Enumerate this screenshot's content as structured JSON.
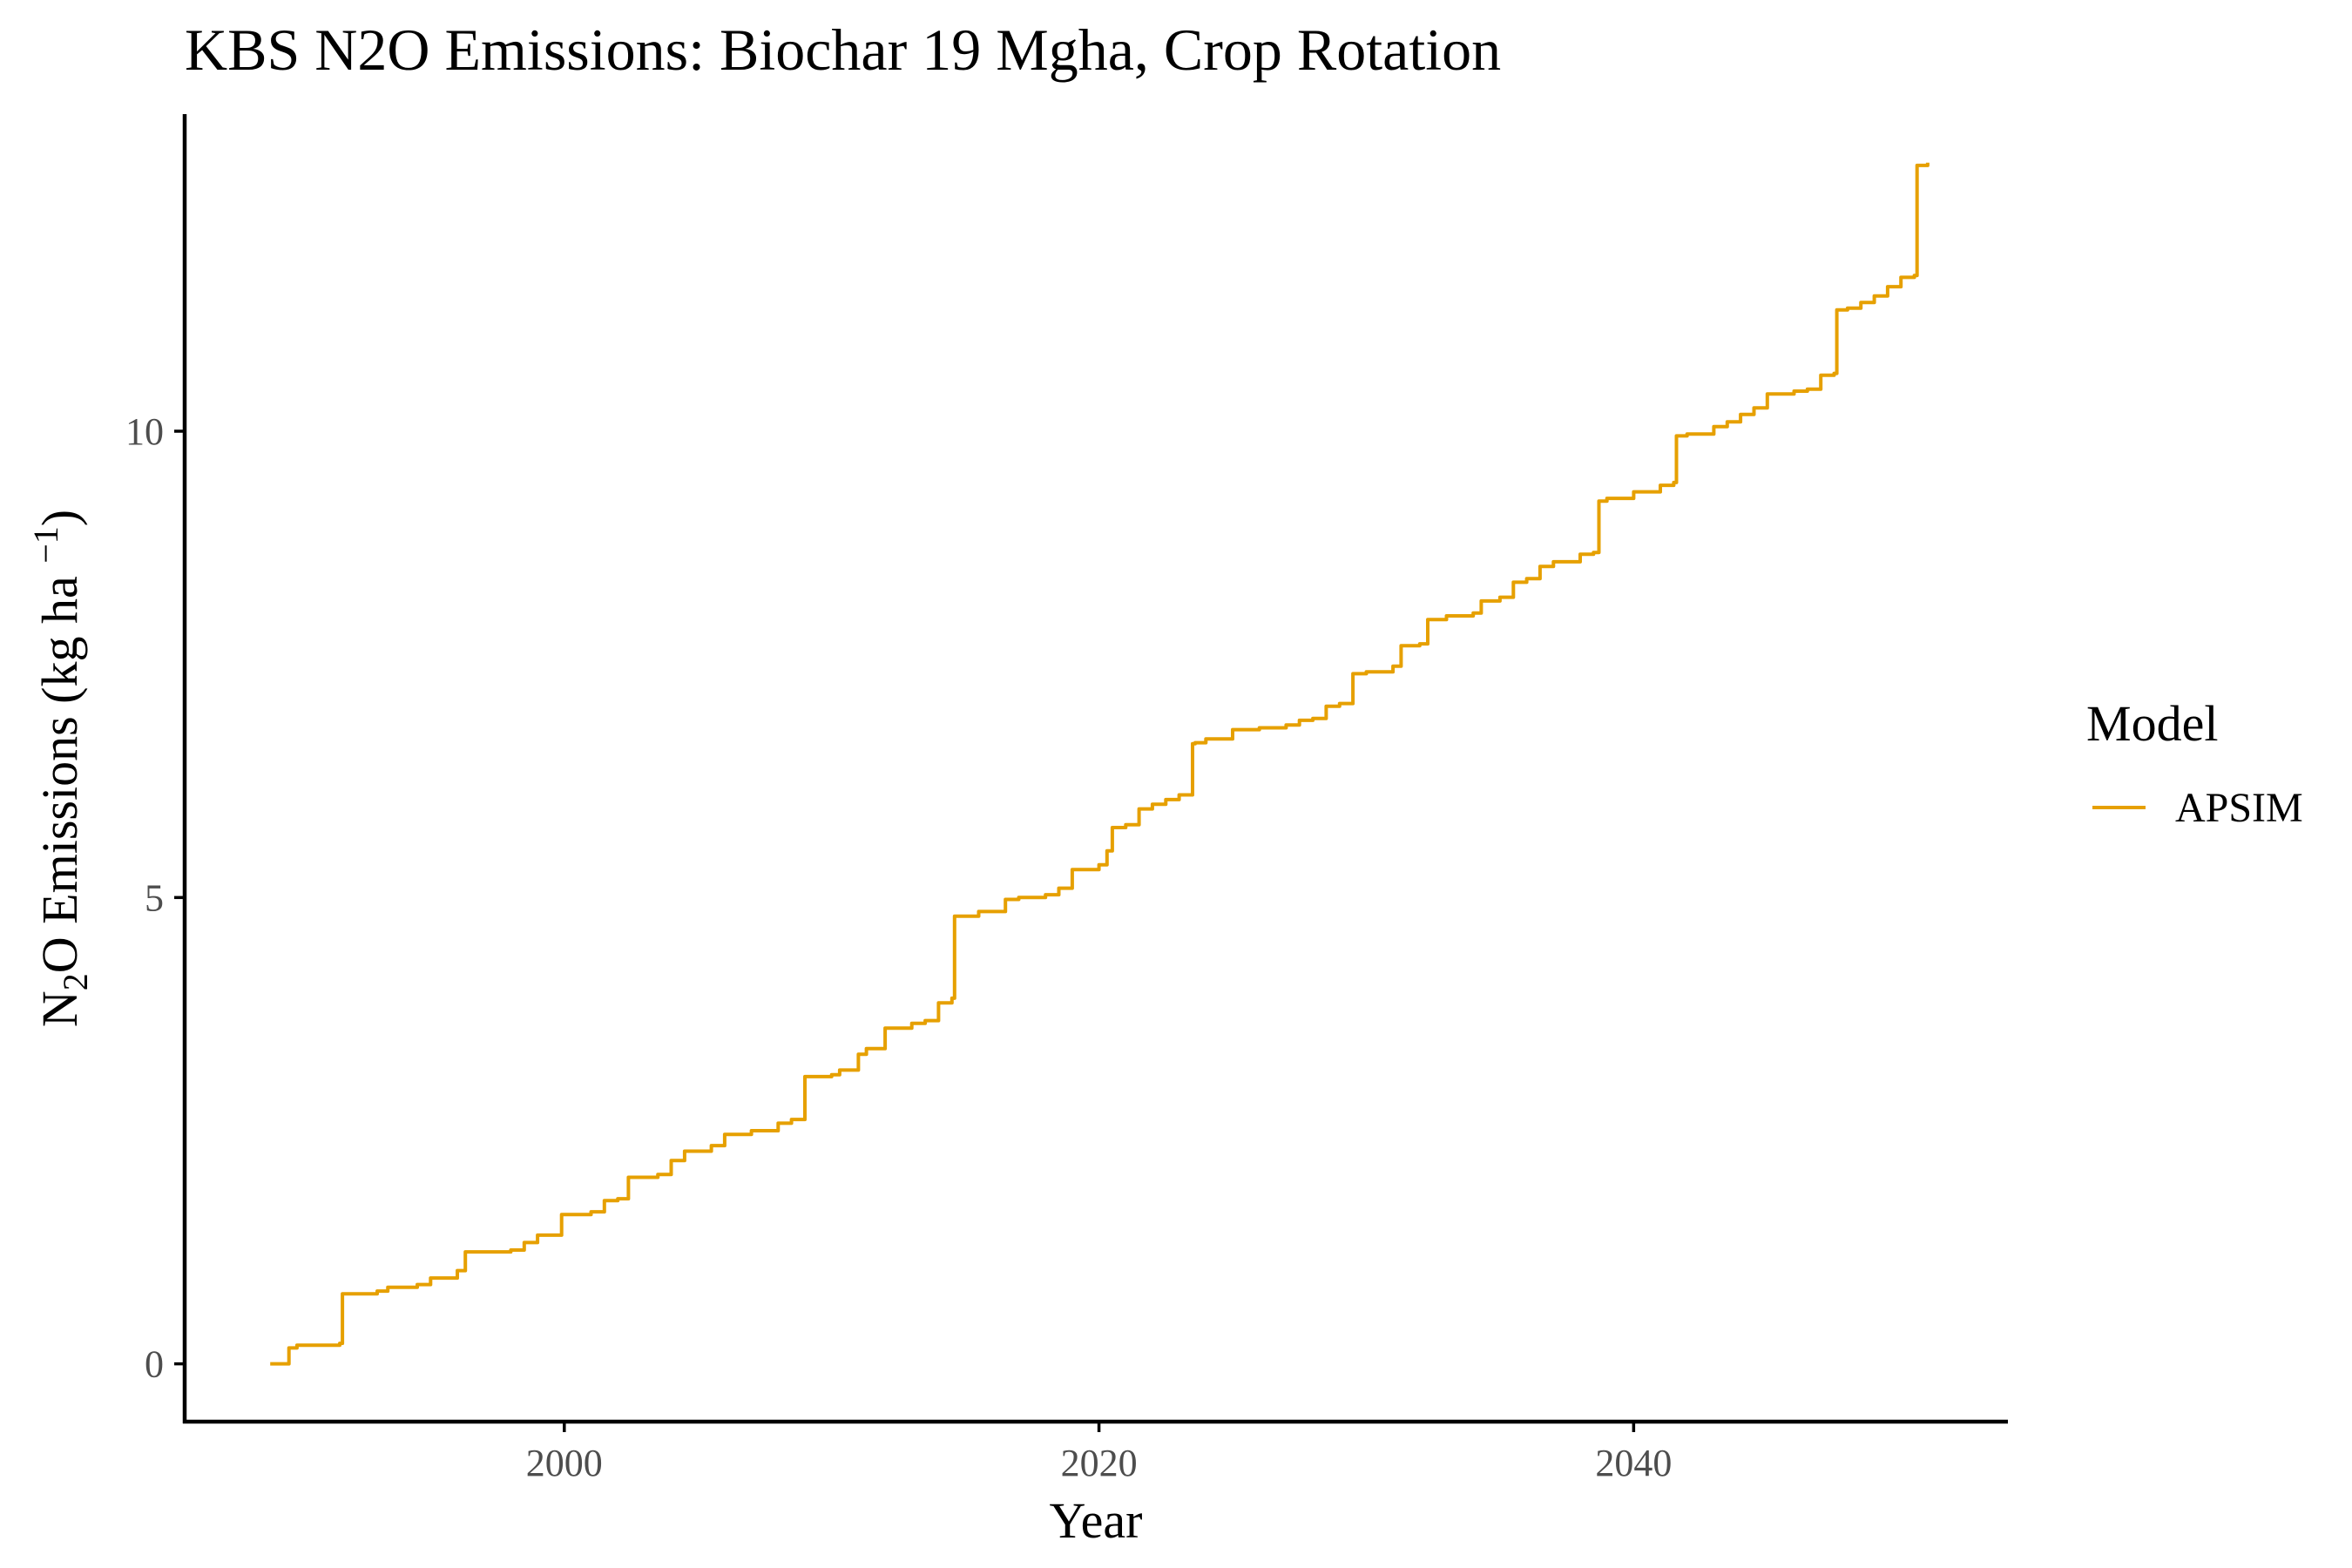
{
  "chart_data": {
    "type": "line",
    "title": "KBS N2O Emissions:  Biochar 19 Mgha, Crop Rotation",
    "xlabel": "Year",
    "ylabel": "N2O Emissions (kg ha -1)",
    "xlim": [
      1985.8,
      2054.0
    ],
    "ylim": [
      -0.62,
      13.4
    ],
    "xticks": [
      2000,
      2020,
      2040
    ],
    "yticks": [
      0,
      5,
      10
    ],
    "grid": false,
    "legend": {
      "title": "Model",
      "position": "right"
    },
    "series": [
      {
        "name": "APSIM",
        "color": "#E6A000",
        "x": [
          1989.0,
          1989.6,
          1989.7,
          1990.0,
          1991.0,
          1991.6,
          1991.7,
          1993.0,
          1993.4,
          1994.5,
          1995.0,
          1996.0,
          1996.3,
          1997.0,
          1998.0,
          1998.5,
          1999.0,
          1999.9,
          2000.2,
          2001.0,
          2001.5,
          2002.0,
          2002.4,
          2003.5,
          2004.0,
          2004.5,
          2005.5,
          2006.0,
          2007.0,
          2008.0,
          2008.5,
          2009.0,
          2010.0,
          2010.3,
          2011.0,
          2011.3,
          2012.0,
          2013.0,
          2013.5,
          2014.0,
          2014.5,
          2014.6,
          2015.0,
          2015.5,
          2016.5,
          2017.0,
          2018.0,
          2018.5,
          2019.0,
          2020.0,
          2020.3,
          2020.5,
          2021.0,
          2021.5,
          2022.0,
          2022.5,
          2023.0,
          2023.5,
          2023.6,
          2024.0,
          2025.0,
          2026.0,
          2027.0,
          2027.5,
          2028.0,
          2028.5,
          2029.0,
          2029.5,
          2030.0,
          2031.0,
          2031.3,
          2032.0,
          2032.3,
          2033.0,
          2034.0,
          2034.3,
          2035.0,
          2035.5,
          2036.0,
          2036.5,
          2037.0,
          2038.0,
          2038.5,
          2038.7,
          2039.0,
          2040.0,
          2041.0,
          2041.5,
          2041.6,
          2042.0,
          2043.0,
          2043.5,
          2044.0,
          2044.5,
          2045.0,
          2046.0,
          2046.5,
          2047.0,
          2047.5,
          2047.6,
          2048.0,
          2048.5,
          2049.0,
          2049.5,
          2050.0,
          2050.5,
          2050.6,
          2051.0
        ],
        "y": [
          0.0,
          0.0,
          0.17,
          0.2,
          0.2,
          0.22,
          0.75,
          0.78,
          0.82,
          0.85,
          0.92,
          1.0,
          1.2,
          1.2,
          1.22,
          1.3,
          1.38,
          1.6,
          1.6,
          1.63,
          1.75,
          1.77,
          2.0,
          2.03,
          2.18,
          2.28,
          2.34,
          2.46,
          2.5,
          2.58,
          2.62,
          3.08,
          3.1,
          3.15,
          3.32,
          3.38,
          3.6,
          3.65,
          3.68,
          3.87,
          3.92,
          4.8,
          4.8,
          4.85,
          4.98,
          5.0,
          5.03,
          5.1,
          5.3,
          5.35,
          5.5,
          5.75,
          5.78,
          5.95,
          6.0,
          6.05,
          6.1,
          6.65,
          6.66,
          6.7,
          6.8,
          6.82,
          6.85,
          6.9,
          6.92,
          7.05,
          7.08,
          7.4,
          7.42,
          7.48,
          7.7,
          7.72,
          7.98,
          8.02,
          8.05,
          8.18,
          8.22,
          8.38,
          8.42,
          8.55,
          8.6,
          8.68,
          8.7,
          9.25,
          9.28,
          9.35,
          9.42,
          9.45,
          9.95,
          9.97,
          10.05,
          10.1,
          10.18,
          10.25,
          10.4,
          10.43,
          10.45,
          10.6,
          10.62,
          11.3,
          11.32,
          11.38,
          11.45,
          11.55,
          11.65,
          11.67,
          12.85,
          12.88
        ]
      }
    ]
  }
}
